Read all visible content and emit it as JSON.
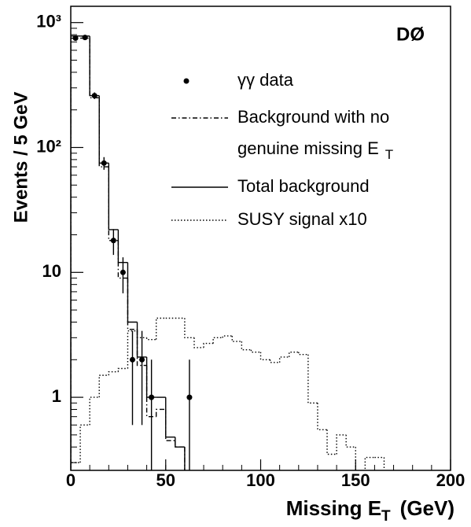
{
  "chart_data": {
    "type": "histogram",
    "experiment_label": "DØ",
    "y_label": "Events / 5 GeV",
    "x_label": {
      "main": "Missing E",
      "subscript": "T",
      "suffix": "(GeV)"
    },
    "log_y": true,
    "xlim": [
      0,
      200
    ],
    "xticks": [
      0,
      50,
      100,
      150,
      200
    ],
    "ylim": [
      0.26,
      1350
    ],
    "yticks": [
      1,
      10,
      {
        "value": 100,
        "label": "10²"
      },
      {
        "value": 1000,
        "label": "10³"
      }
    ],
    "bins": [
      0,
      5,
      10,
      15,
      20,
      25,
      30,
      35,
      40,
      45,
      50,
      55,
      60,
      65,
      70,
      75,
      80,
      85,
      90,
      95,
      100,
      105,
      110,
      115,
      120,
      125,
      130,
      135,
      140,
      145,
      150,
      155,
      160,
      165
    ],
    "series": [
      {
        "name": [
          "Background with no",
          "genuine missing E"
        ],
        "name_subscript": "T",
        "style": "dashdot",
        "color": "#000000",
        "values": [
          750,
          750,
          250,
          70,
          18,
          9,
          3.5,
          1.8,
          0.7,
          0.8,
          0.45,
          0.4,
          0,
          0,
          0,
          0,
          0,
          0,
          0,
          0,
          0,
          0,
          0,
          0,
          0,
          0,
          0,
          0,
          0,
          0,
          0,
          0,
          0
        ]
      },
      {
        "name": "Total background",
        "style": "solid",
        "color": "#000000",
        "values": [
          780,
          780,
          260,
          75,
          22,
          12,
          4,
          2.1,
          1,
          1,
          0.48,
          0.4,
          0,
          0,
          0,
          0,
          0,
          0,
          0,
          0,
          0,
          0,
          0,
          0,
          0,
          0,
          0,
          0,
          0,
          0,
          0,
          0,
          0
        ]
      },
      {
        "name": "SUSY signal x10",
        "style": "dotted",
        "color": "#000000",
        "values": [
          0.3,
          0.6,
          1.0,
          1.5,
          1.6,
          1.7,
          3.4,
          3.0,
          2.9,
          4.3,
          4.3,
          4.3,
          3.0,
          2.5,
          2.7,
          3.0,
          3.1,
          2.8,
          2.4,
          2.3,
          2.0,
          1.9,
          2.1,
          2.3,
          2.2,
          0.9,
          0.55,
          0.35,
          0.5,
          0.4,
          0.2,
          0.33,
          0.33
        ]
      }
    ],
    "points": {
      "name": "γγ data",
      "color": "#000000",
      "x": [
        2.5,
        7.5,
        12.5,
        17.5,
        22.5,
        27.5,
        32.5,
        37.5,
        42.5,
        62.5
      ],
      "values": [
        750,
        760,
        260,
        75,
        18,
        10,
        2,
        2,
        1,
        1
      ],
      "errors": [
        27,
        28,
        16,
        8.7,
        4.2,
        3.2,
        1.4,
        1.4,
        1,
        1
      ]
    }
  }
}
